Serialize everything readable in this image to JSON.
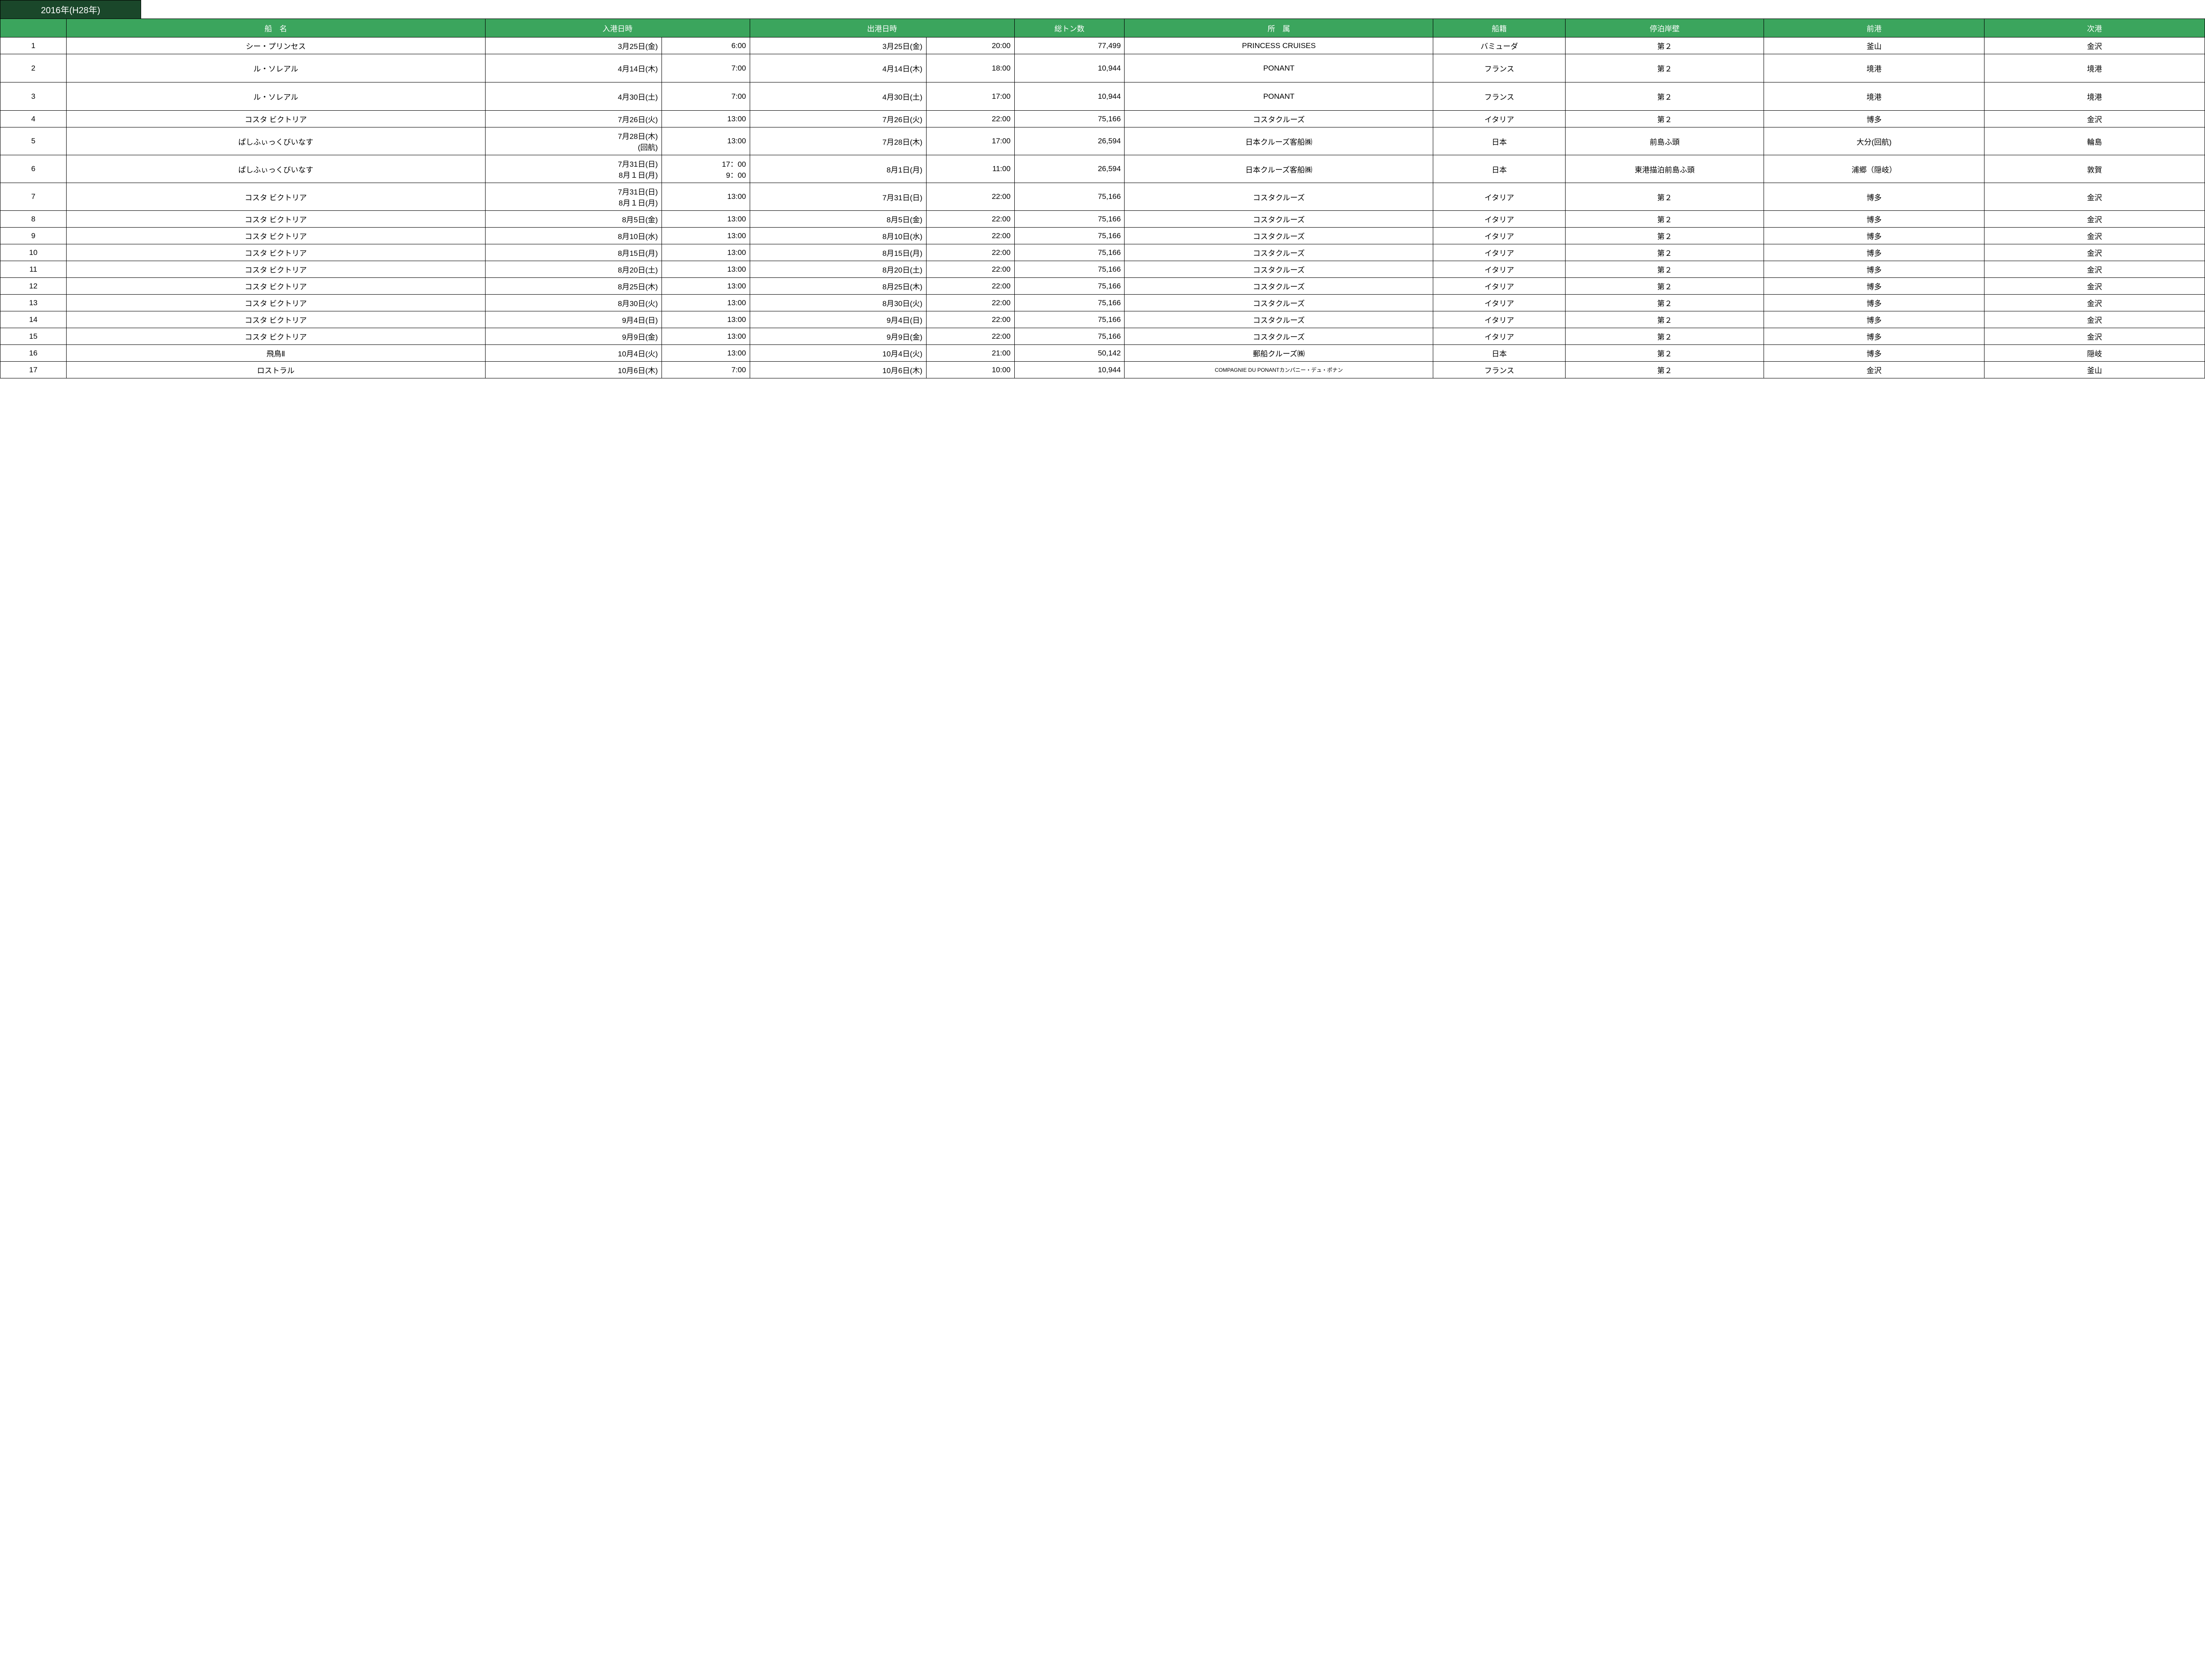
{
  "title": "2016年(H28年)",
  "colors": {
    "title_bg": "#1a472a",
    "header_bg": "#3ba55d",
    "header_fg": "#ffffff",
    "border": "#000000",
    "bg": "#ffffff",
    "fg": "#000000"
  },
  "fontsizes": {
    "title": 20,
    "header": 17,
    "cell": 17,
    "small": 12
  },
  "columns": [
    {
      "key": "idx",
      "label": "",
      "class": "col-idx"
    },
    {
      "key": "name",
      "label": "船　名",
      "class": "col-name"
    },
    {
      "key": "adate",
      "label_span": "入港日時",
      "class": "col-adate"
    },
    {
      "key": "atime",
      "class": "col-atime"
    },
    {
      "key": "ddate",
      "label_span": "出港日時",
      "class": "col-ddate"
    },
    {
      "key": "dtime",
      "class": "col-dtime"
    },
    {
      "key": "ton",
      "label": "総トン数",
      "class": "col-ton"
    },
    {
      "key": "aff",
      "label": "所　属",
      "class": "col-aff"
    },
    {
      "key": "flag",
      "label": "船籍",
      "class": "col-flag"
    },
    {
      "key": "berth",
      "label": "停泊岸壁",
      "class": "col-berth"
    },
    {
      "key": "prev",
      "label": "前港",
      "class": "col-prev"
    },
    {
      "key": "next",
      "label": "次港",
      "class": "col-next"
    }
  ],
  "rows": [
    {
      "idx": "1",
      "name": "シー・プリンセス",
      "adate": "3月25日(金)",
      "atime": "6:00",
      "ddate": "3月25日(金)",
      "dtime": "20:00",
      "ton": "77,499",
      "aff": "PRINCESS CRUISES",
      "flag": "バミューダ",
      "berth": "第２",
      "prev": "釜山",
      "next": "金沢"
    },
    {
      "idx": "2",
      "name": "ル・ソレアル",
      "adate": "4月14日(木)",
      "atime": "7:00",
      "ddate": "4月14日(木)",
      "dtime": "18:00",
      "ton": "10,944",
      "aff": "PONANT",
      "flag": "フランス",
      "berth": "第２",
      "prev": "境港",
      "next": "境港",
      "tall": true
    },
    {
      "idx": "3",
      "name": "ル・ソレアル",
      "adate": "4月30日(土)",
      "atime": "7:00",
      "ddate": "4月30日(土)",
      "dtime": "17:00",
      "ton": "10,944",
      "aff": "PONANT",
      "flag": "フランス",
      "berth": "第２",
      "prev": "境港",
      "next": "境港",
      "tall": true
    },
    {
      "idx": "4",
      "name": "コスタ ビクトリア",
      "adate": "7月26日(火)",
      "atime": "13:00",
      "ddate": "7月26日(火)",
      "dtime": "22:00",
      "ton": "75,166",
      "aff": "コスタクルーズ",
      "flag": "イタリア",
      "berth": "第２",
      "prev": "博多",
      "next": "金沢"
    },
    {
      "idx": "5",
      "name": "ぱしふぃっくびいなす",
      "adate": "7月28日(木)\n(回航)",
      "atime": "13:00",
      "ddate": "7月28日(木)",
      "dtime": "17:00",
      "ton": "26,594",
      "aff": "日本クルーズ客船㈱",
      "flag": "日本",
      "berth": "前島ふ頭",
      "prev": "大分(回航)",
      "next": "輪島"
    },
    {
      "idx": "6",
      "name": "ぱしふぃっくびいなす",
      "adate": "7月31日(日)\n8月１日(月)",
      "atime": "17：00\n9：00",
      "ddate": "8月1日(月)",
      "dtime": "11:00",
      "ton": "26,594",
      "aff": "日本クルーズ客船㈱",
      "flag": "日本",
      "berth": "東港描泊前島ふ頭",
      "prev": "浦郷（隠岐）",
      "next": "敦賀"
    },
    {
      "idx": "7",
      "name": "コスタ ビクトリア",
      "adate": "7月31日(日)\n8月１日(月)",
      "atime": "13:00",
      "ddate": "7月31日(日)",
      "dtime": "22:00",
      "ton": "75,166",
      "aff": "コスタクルーズ",
      "flag": "イタリア",
      "berth": "第２",
      "prev": "博多",
      "next": "金沢"
    },
    {
      "idx": "8",
      "name": "コスタ ビクトリア",
      "adate": "8月5日(金)",
      "atime": "13:00",
      "ddate": "8月5日(金)",
      "dtime": "22:00",
      "ton": "75,166",
      "aff": "コスタクルーズ",
      "flag": "イタリア",
      "berth": "第２",
      "prev": "博多",
      "next": "金沢"
    },
    {
      "idx": "9",
      "name": "コスタ ビクトリア",
      "adate": "8月10日(水)",
      "atime": "13:00",
      "ddate": "8月10日(水)",
      "dtime": "22:00",
      "ton": "75,166",
      "aff": "コスタクルーズ",
      "flag": "イタリア",
      "berth": "第２",
      "prev": "博多",
      "next": "金沢"
    },
    {
      "idx": "10",
      "name": "コスタ ビクトリア",
      "adate": "8月15日(月)",
      "atime": "13:00",
      "ddate": "8月15日(月)",
      "dtime": "22:00",
      "ton": "75,166",
      "aff": "コスタクルーズ",
      "flag": "イタリア",
      "berth": "第２",
      "prev": "博多",
      "next": "金沢"
    },
    {
      "idx": "11",
      "name": "コスタ ビクトリア",
      "adate": "8月20日(土)",
      "atime": "13:00",
      "ddate": "8月20日(土)",
      "dtime": "22:00",
      "ton": "75,166",
      "aff": "コスタクルーズ",
      "flag": "イタリア",
      "berth": "第２",
      "prev": "博多",
      "next": "金沢"
    },
    {
      "idx": "12",
      "name": "コスタ ビクトリア",
      "adate": "8月25日(木)",
      "atime": "13:00",
      "ddate": "8月25日(木)",
      "dtime": "22:00",
      "ton": "75,166",
      "aff": "コスタクルーズ",
      "flag": "イタリア",
      "berth": "第２",
      "prev": "博多",
      "next": "金沢"
    },
    {
      "idx": "13",
      "name": "コスタ ビクトリア",
      "adate": "8月30日(火)",
      "atime": "13:00",
      "ddate": "8月30日(火)",
      "dtime": "22:00",
      "ton": "75,166",
      "aff": "コスタクルーズ",
      "flag": "イタリア",
      "berth": "第２",
      "prev": "博多",
      "next": "金沢"
    },
    {
      "idx": "14",
      "name": "コスタ ビクトリア",
      "adate": "9月4日(日)",
      "atime": "13:00",
      "ddate": "9月4日(日)",
      "dtime": "22:00",
      "ton": "75,166",
      "aff": "コスタクルーズ",
      "flag": "イタリア",
      "berth": "第２",
      "prev": "博多",
      "next": "金沢"
    },
    {
      "idx": "15",
      "name": "コスタ ビクトリア",
      "adate": "9月9日(金)",
      "atime": "13:00",
      "ddate": "9月9日(金)",
      "dtime": "22:00",
      "ton": "75,166",
      "aff": "コスタクルーズ",
      "flag": "イタリア",
      "berth": "第２",
      "prev": "博多",
      "next": "金沢"
    },
    {
      "idx": "16",
      "name": "飛鳥Ⅱ",
      "adate": "10月4日(火)",
      "atime": "13:00",
      "ddate": "10月4日(火)",
      "dtime": "21:00",
      "ton": "50,142",
      "aff": "郵船クルーズ㈱",
      "flag": "日本",
      "berth": "第２",
      "prev": "博多",
      "next": "隠岐"
    },
    {
      "idx": "17",
      "name": "ロストラル",
      "adate": "10月6日(木)",
      "atime": "7:00",
      "ddate": "10月6日(木)",
      "dtime": "10:00",
      "ton": "10,944",
      "aff": "COMPAGNIE DU PONANTカンパニー・デュ・ポナン",
      "aff_small": true,
      "flag": "フランス",
      "berth": "第２",
      "prev": "金沢",
      "next": "釜山"
    }
  ]
}
